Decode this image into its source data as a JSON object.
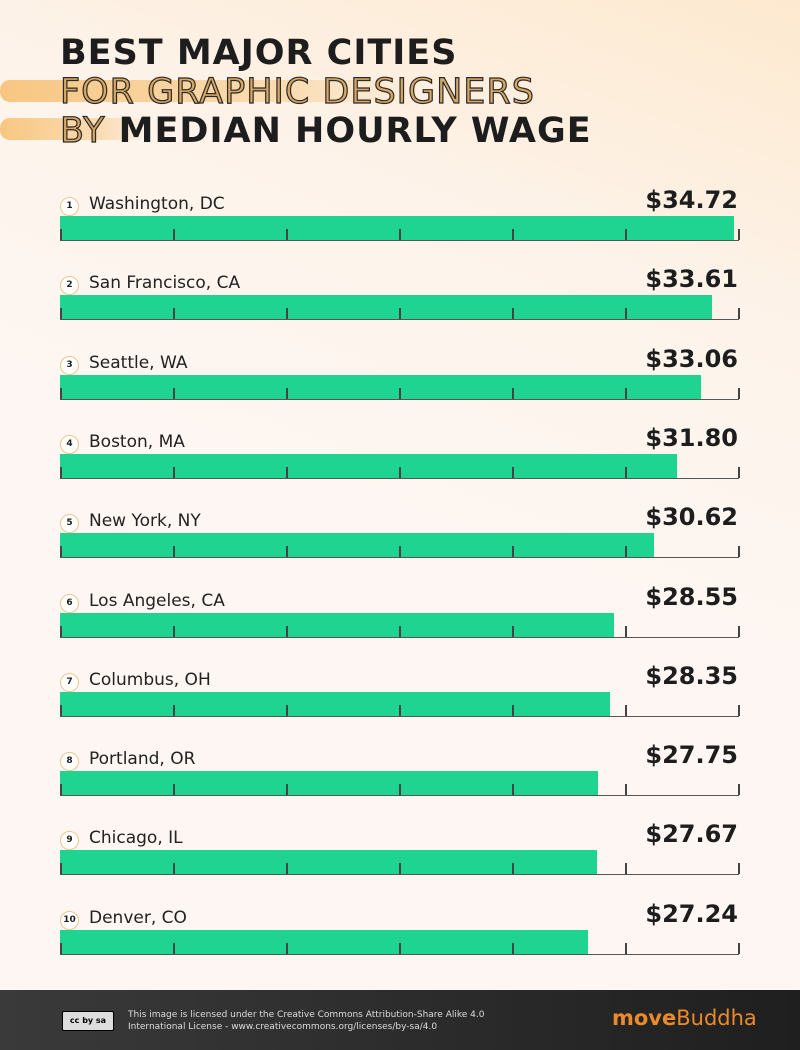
{
  "title": {
    "line1": "BEST MAJOR CITIES",
    "line2": "FOR GRAPHIC DESIGNERS",
    "line3a": "BY",
    "line3b": "MEDIAN HOURLY WAGE"
  },
  "chart_data": {
    "type": "bar",
    "orientation": "horizontal",
    "title": "Best Major Cities for Graphic Designers by Median Hourly Wage",
    "categories": [
      "Washington, DC",
      "San Francisco, CA",
      "Seattle, WA",
      "Boston, MA",
      "New York, NY",
      "Los Angeles, CA",
      "Columbus, OH",
      "Portland, OR",
      "Chicago, IL",
      "Denver, CO"
    ],
    "ranks": [
      "1",
      "2",
      "3",
      "4",
      "5",
      "6",
      "7",
      "8",
      "9",
      "10"
    ],
    "values": [
      34.72,
      33.61,
      33.06,
      31.8,
      30.62,
      28.55,
      28.35,
      27.75,
      27.67,
      27.24
    ],
    "labels": [
      "$34.72",
      "$33.61",
      "$33.06",
      "$31.80",
      "$30.62",
      "$28.55",
      "$28.35",
      "$27.75",
      "$27.67",
      "$27.24"
    ],
    "xlim": [
      0,
      35
    ],
    "bar_color": "#1fd490"
  },
  "footer": {
    "cc_badge": "cc by sa",
    "license_line1": "This image is licensed under the Creative Commons Attribution-Share Alike 4.0",
    "license_line2": "International License - www.creativecommons.org/licenses/by-sa/4.0",
    "logo_bold": "move",
    "logo_rest": "Buddha"
  }
}
